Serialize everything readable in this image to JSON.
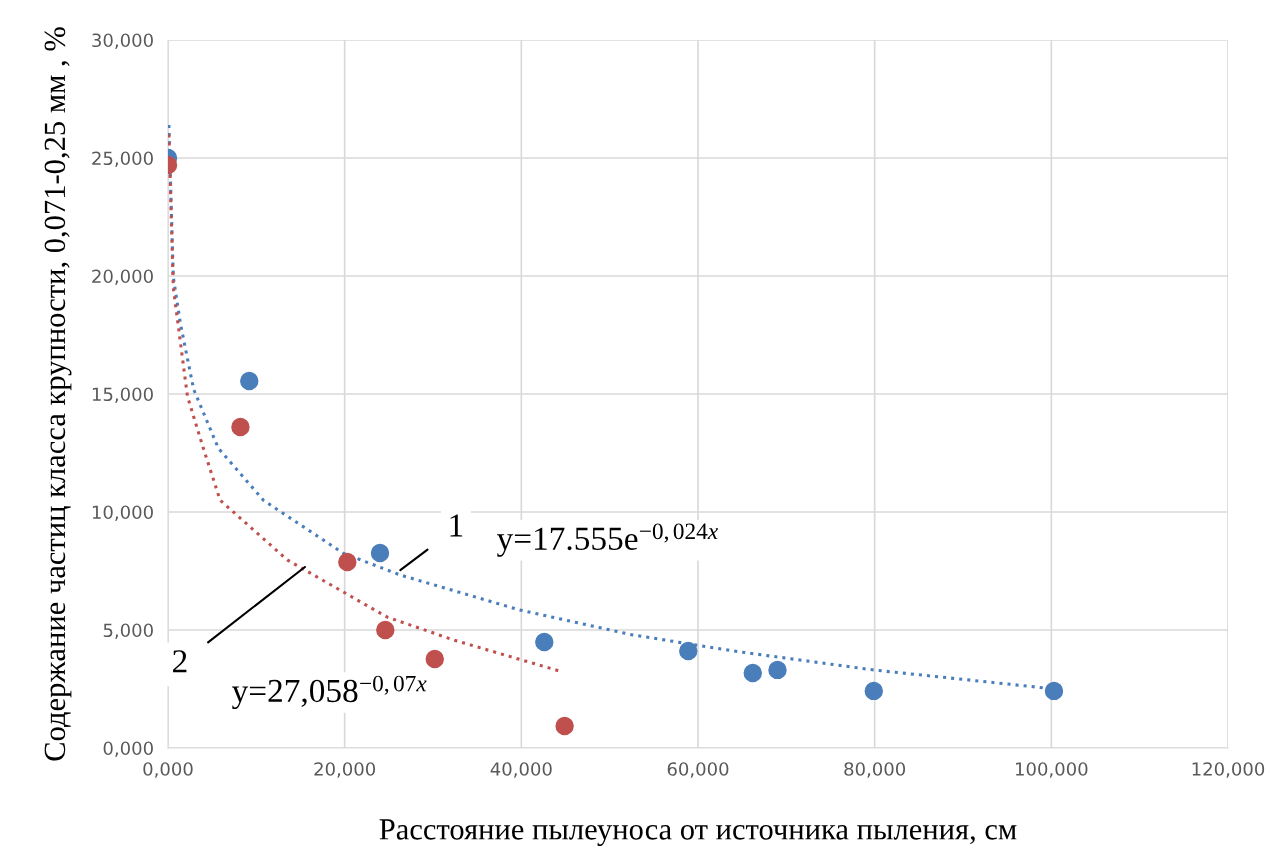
{
  "chart_data": {
    "type": "scatter",
    "xlabel": "Расстояние пылеуноса от источника пыления, см",
    "ylabel": "Содержание частиц класса крупности, 0,071-0,25 мм , %",
    "xlim": [
      0,
      120
    ],
    "ylim": [
      0,
      30
    ],
    "xticks": [
      {
        "value": 0,
        "label": "0,000"
      },
      {
        "value": 20,
        "label": "20,000"
      },
      {
        "value": 40,
        "label": "40,000"
      },
      {
        "value": 60,
        "label": "60,000"
      },
      {
        "value": 80,
        "label": "80,000"
      },
      {
        "value": 100,
        "label": "100,000"
      },
      {
        "value": 120,
        "label": "120,000"
      }
    ],
    "yticks": [
      {
        "value": 0,
        "label": "0,000"
      },
      {
        "value": 5,
        "label": "5,000"
      },
      {
        "value": 10,
        "label": "10,000"
      },
      {
        "value": 15,
        "label": "15,000"
      },
      {
        "value": 20,
        "label": "20,000"
      },
      {
        "value": 25,
        "label": "25,000"
      },
      {
        "value": 30,
        "label": "30,000"
      }
    ],
    "grid": true,
    "legend": false,
    "series": [
      {
        "type": "line",
        "color": "#4a7ebb",
        "marker": "none",
        "line_style": "dotted",
        "x": [
          0.1,
          0.6,
          1.4,
          2.9,
          5.7,
          10.8,
          19.8,
          26.3,
          39.8,
          52.6,
          64.8,
          80,
          100.4
        ],
        "values": [
          26.4,
          19.96,
          18.0,
          15.2,
          12.7,
          10.5,
          8.26,
          7.33,
          5.85,
          4.79,
          4.07,
          3.3,
          2.5
        ]
      },
      {
        "type": "line",
        "color": "#c0504d",
        "marker": "none",
        "line_style": "dotted",
        "x": [
          0.1,
          0.6,
          2.2,
          4.0,
          5.9,
          13.5,
          24.8,
          32.3,
          44.7
        ],
        "values": [
          26.0,
          19.5,
          14.9,
          12.7,
          10.5,
          7.97,
          5.55,
          4.58,
          3.22
        ]
      },
      {
        "color": "#4a7ebb",
        "marker": "circle",
        "x": [
          0,
          9.2,
          24.0,
          42.6,
          58.9,
          66.2,
          69.0,
          79.9,
          100.3
        ],
        "values": [
          25.0,
          15.55,
          8.26,
          4.49,
          4.11,
          3.18,
          3.31,
          2.42,
          2.42
        ]
      },
      {
        "color": "#c0504d",
        "marker": "circle",
        "x": [
          0,
          8.2,
          20.3,
          24.6,
          30.2,
          44.9
        ],
        "values": [
          24.7,
          13.6,
          7.88,
          5.0,
          3.77,
          0.93
        ]
      }
    ],
    "annotations": [
      {
        "text": "1",
        "x": 26.3,
        "y": 7.54
      },
      {
        "text": "2",
        "x": 15.5,
        "y": 7.67
      },
      "y=17.555e$^{−0,024x}$",
      "y=27,058$^{−0,07x}$"
    ]
  }
}
